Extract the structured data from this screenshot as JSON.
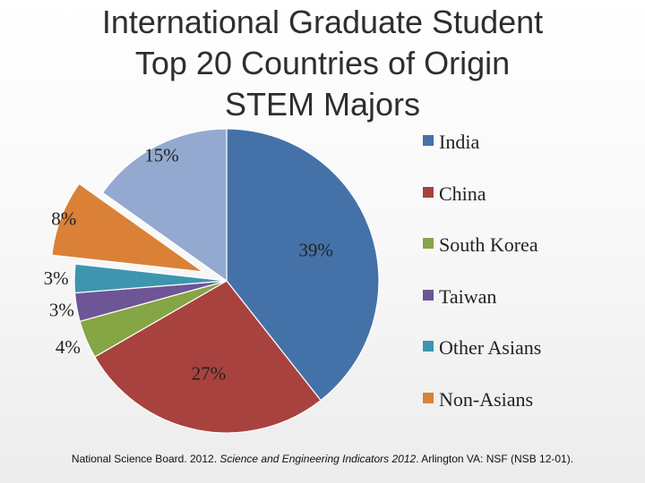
{
  "title_lines": [
    "International Graduate Student",
    "Top 20 Countries of Origin",
    "STEM Majors"
  ],
  "source": {
    "prefix": "National Science Board. 2012. ",
    "publication": "Science and Engineering Indicators 2012",
    "suffix": ". Arlington VA: NSF (NSB 12-01)."
  },
  "chart_data": {
    "type": "pie",
    "title": "International Graduate Student Top 20 Countries of Origin STEM Majors",
    "categories": [
      "India",
      "China",
      "South Korea",
      "Taiwan",
      "Other Asians",
      "Non-Asians"
    ],
    "values": [
      39,
      27,
      4,
      3,
      3,
      8
    ],
    "data_labels": [
      "39%",
      "27%",
      "4%",
      "3%",
      "3%",
      "8%"
    ],
    "unlabeled_slice": {
      "value": 15,
      "label": "15%"
    },
    "colors": [
      "#4472a8",
      "#a8423f",
      "#86a544",
      "#6e5596",
      "#3d96ae",
      "#da8137",
      "#93a9cf"
    ],
    "exploded": [
      "Non-Asians"
    ],
    "legend_position": "right"
  }
}
